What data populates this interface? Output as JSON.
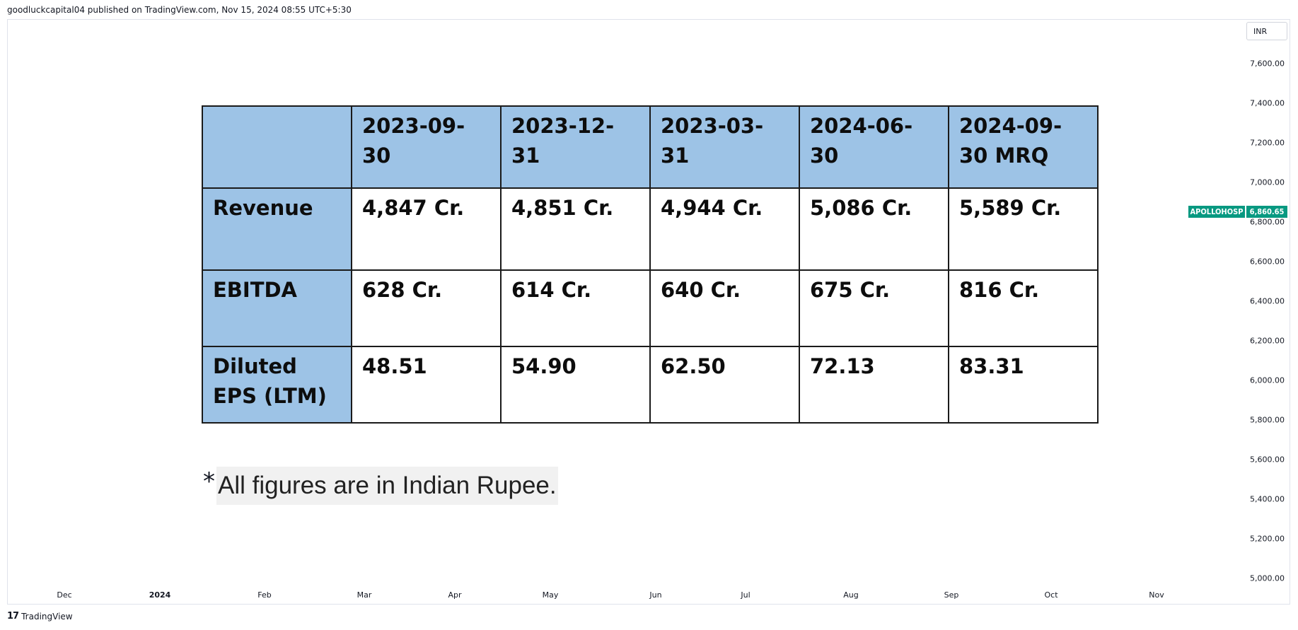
{
  "header": {
    "publisher_line": "goodluckcapital04 published on TradingView.com, Nov 15, 2024 08:55 UTC+5:30"
  },
  "price_axis": {
    "currency": "INR",
    "labels": [
      "7,600.00",
      "7,400.00",
      "7,200.00",
      "7,000.00",
      "6,800.00",
      "6,600.00",
      "6,400.00",
      "6,200.00",
      "6,000.00",
      "5,800.00",
      "5,600.00",
      "5,400.00",
      "5,200.00",
      "5,000.00"
    ]
  },
  "symbol": {
    "ticker": "APOLLOHOSP",
    "last_price": "6,860.65",
    "color": "#089981"
  },
  "time_axis": {
    "labels": [
      "Dec",
      "2024",
      "Feb",
      "Mar",
      "Apr",
      "May",
      "Jun",
      "Jul",
      "Aug",
      "Sep",
      "Oct",
      "Nov"
    ]
  },
  "table": {
    "header_color": "#9dc3e6",
    "columns": [
      "",
      "2023-09-30",
      "2023-12-31",
      "2023-03-31",
      "2024-06-30",
      "2024-09-30 MRQ"
    ],
    "rows": [
      {
        "label": "Revenue",
        "values": [
          "4,847 Cr.",
          "4,851 Cr.",
          "4,944 Cr.",
          "5,086 Cr.",
          "5,589 Cr."
        ]
      },
      {
        "label": "EBITDA",
        "values": [
          "628 Cr.",
          "614 Cr.",
          "640 Cr.",
          "675 Cr.",
          "816 Cr."
        ]
      },
      {
        "label": "Diluted EPS (LTM)",
        "values": [
          "48.51",
          "54.90",
          "62.50",
          "72.13",
          "83.31"
        ]
      }
    ]
  },
  "footnote": {
    "star": "*",
    "text": "All figures are in Indian Rupee."
  },
  "footer": {
    "brand_logo": "17",
    "brand_name": "TradingView"
  }
}
